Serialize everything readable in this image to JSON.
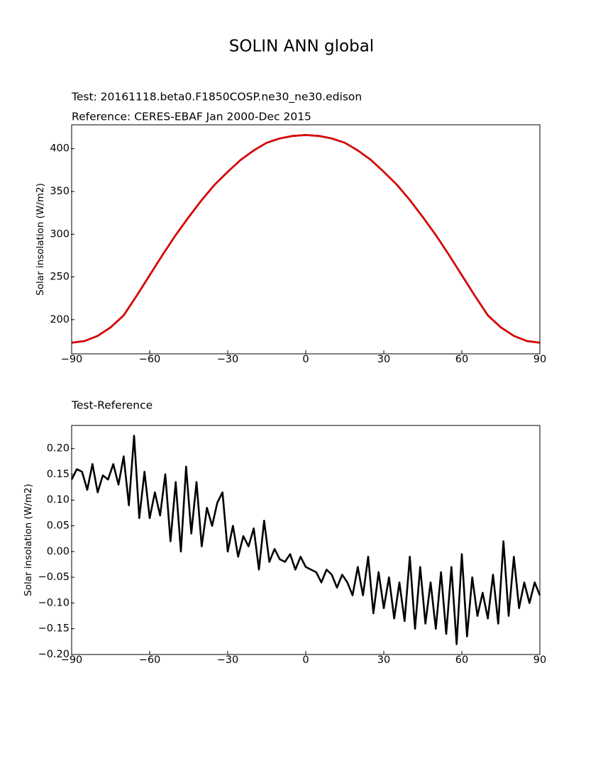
{
  "title": "SOLIN ANN global",
  "chart_data": [
    {
      "type": "line",
      "ylabel": "Solar insolation (W/m2)",
      "x": [
        -90,
        -85,
        -80,
        -75,
        -70,
        -65,
        -60,
        -55,
        -50,
        -45,
        -40,
        -35,
        -30,
        -25,
        -20,
        -15,
        -10,
        -5,
        0,
        5,
        10,
        15,
        20,
        25,
        30,
        35,
        40,
        45,
        50,
        55,
        60,
        65,
        70,
        75,
        80,
        85,
        90
      ],
      "series": [
        {
          "name": "Test: 20161118.beta0.F1850COSP.ne30_ne30.edison",
          "color": "#000000",
          "values": [
            173,
            175,
            181,
            191,
            205,
            228,
            252,
            276,
            299,
            320,
            340,
            358,
            373,
            387,
            398,
            407,
            412,
            415,
            416,
            415,
            412,
            407,
            398,
            387,
            373,
            358,
            340,
            320,
            299,
            276,
            252,
            228,
            205,
            191,
            181,
            175,
            173
          ]
        },
        {
          "name": "Reference: CERES-EBAF Jan 2000-Dec 2015",
          "color": "#e00000",
          "values": [
            173,
            175,
            181,
            191,
            205,
            228,
            252,
            276,
            299,
            320,
            340,
            358,
            373,
            387,
            398,
            407,
            412,
            415,
            416,
            415,
            412,
            407,
            398,
            387,
            373,
            358,
            340,
            320,
            299,
            276,
            252,
            228,
            205,
            191,
            181,
            175,
            173
          ]
        }
      ],
      "xlim": [
        -90,
        90
      ],
      "xticks": [
        {
          "value": -90,
          "label": "−90"
        },
        {
          "value": -60,
          "label": "−60"
        },
        {
          "value": -30,
          "label": "−30"
        },
        0,
        30,
        60,
        90
      ],
      "ylim": [
        160,
        428
      ],
      "yticks": [
        200,
        250,
        300,
        350,
        400
      ]
    },
    {
      "type": "line",
      "title": "Test-Reference",
      "ylabel": "Solar insolation (W/m2)",
      "color": "#000000",
      "x": [
        -90,
        -88,
        -86,
        -84,
        -82,
        -80,
        -78,
        -76,
        -74,
        -72,
        -70,
        -68,
        -66,
        -64,
        -62,
        -60,
        -58,
        -56,
        -54,
        -52,
        -50,
        -48,
        -46,
        -44,
        -42,
        -40,
        -38,
        -36,
        -34,
        -32,
        -30,
        -28,
        -26,
        -24,
        -22,
        -20,
        -18,
        -16,
        -14,
        -12,
        -10,
        -8,
        -6,
        -4,
        -2,
        0,
        2,
        4,
        6,
        8,
        10,
        12,
        14,
        16,
        18,
        20,
        22,
        24,
        26,
        28,
        30,
        32,
        34,
        36,
        38,
        40,
        42,
        44,
        46,
        48,
        50,
        52,
        54,
        56,
        58,
        60,
        62,
        64,
        66,
        68,
        70,
        72,
        74,
        76,
        78,
        80,
        82,
        84,
        86,
        88,
        90
      ],
      "values": [
        0.14,
        0.16,
        0.155,
        0.12,
        0.17,
        0.115,
        0.148,
        0.14,
        0.17,
        0.13,
        0.185,
        0.09,
        0.225,
        0.065,
        0.155,
        0.065,
        0.115,
        0.07,
        0.15,
        0.02,
        0.135,
        0.0,
        0.165,
        0.035,
        0.135,
        0.01,
        0.085,
        0.05,
        0.095,
        0.115,
        0.0,
        0.05,
        -0.01,
        0.03,
        0.01,
        0.045,
        -0.035,
        0.06,
        -0.02,
        0.005,
        -0.015,
        -0.02,
        -0.005,
        -0.035,
        -0.01,
        -0.03,
        -0.035,
        -0.04,
        -0.06,
        -0.035,
        -0.045,
        -0.07,
        -0.045,
        -0.06,
        -0.085,
        -0.03,
        -0.085,
        -0.01,
        -0.12,
        -0.04,
        -0.11,
        -0.05,
        -0.13,
        -0.06,
        -0.135,
        -0.01,
        -0.15,
        -0.03,
        -0.14,
        -0.06,
        -0.15,
        -0.04,
        -0.16,
        -0.03,
        -0.18,
        -0.005,
        -0.165,
        -0.05,
        -0.125,
        -0.08,
        -0.13,
        -0.045,
        -0.14,
        0.02,
        -0.125,
        -0.01,
        -0.11,
        -0.06,
        -0.1,
        -0.06,
        -0.085
      ],
      "xlim": [
        -90,
        90
      ],
      "xticks": [
        {
          "value": -90,
          "label": "−90"
        },
        {
          "value": -60,
          "label": "−60"
        },
        {
          "value": -30,
          "label": "−30"
        },
        0,
        30,
        60,
        90
      ],
      "ylim": [
        -0.2,
        0.245
      ],
      "yticks": [
        {
          "value": -0.2,
          "label": "−0.20"
        },
        {
          "value": -0.15,
          "label": "−0.15"
        },
        {
          "value": -0.1,
          "label": "−0.10"
        },
        {
          "value": -0.05,
          "label": "−0.05"
        },
        {
          "value": 0,
          "label": "0.00"
        },
        {
          "value": 0.05,
          "label": "0.05"
        },
        {
          "value": 0.1,
          "label": "0.10"
        },
        {
          "value": 0.15,
          "label": "0.15"
        },
        {
          "value": 0.2,
          "label": "0.20"
        }
      ]
    }
  ]
}
